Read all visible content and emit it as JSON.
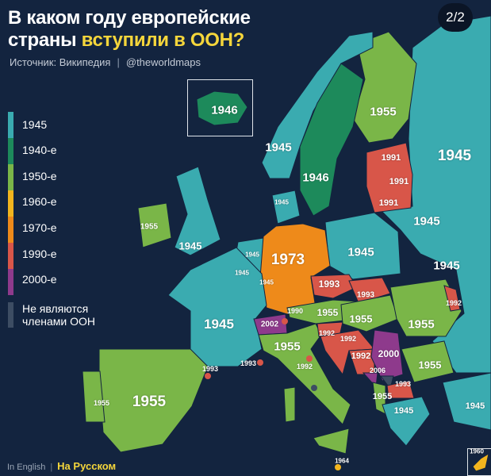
{
  "title": {
    "line1": "В каком году европейские",
    "line2_plain": "страны ",
    "line2_highlight": "вступили в ООН?"
  },
  "source": {
    "text": "Источник: Википедия",
    "handle": "@theworldmaps"
  },
  "pager": "2/2",
  "legend": {
    "items": [
      {
        "label": "1945",
        "color": "#3aabb0"
      },
      {
        "label": "1940-е",
        "color": "#1d8a5b"
      },
      {
        "label": "1950-е",
        "color": "#7ab648"
      },
      {
        "label": "1960-е",
        "color": "#f2b51e"
      },
      {
        "label": "1970-е",
        "color": "#ee8a1a"
      },
      {
        "label": "1990-е",
        "color": "#d85649"
      },
      {
        "label": "2000-е",
        "color": "#8e3a8c"
      }
    ],
    "non_member": {
      "label": "Не являются членами ООН",
      "color": "#3d4d63"
    }
  },
  "map": {
    "labels": {
      "iceland": "1946",
      "finland": "1955",
      "russia": "1945",
      "norway": "1945",
      "sweden": "1946",
      "estonia": "1991",
      "latvia": "1991",
      "lithuania": "1991",
      "belarus": "1945",
      "ireland": "1955",
      "uk": "1945",
      "denmark": "1945",
      "netherlands": "1945",
      "belgium": "1945",
      "luxembourg": "1945",
      "germany": "1973",
      "poland": "1945",
      "ukraine": "1945",
      "czechia": "1993",
      "slovakia": "1993",
      "moldova": "1992",
      "liechtenstein": "1990",
      "austria": "1955",
      "hungary": "1955",
      "romania": "1955",
      "france": "1945",
      "switzerland": "2002",
      "italy": "1955",
      "slovenia": "1992",
      "croatia": "1992",
      "bosnia": "1992",
      "serbia": "2000",
      "bulgaria": "1955",
      "montenegro": "2006",
      "macedonia": "1993",
      "monaco": "1993",
      "andorra": "1993",
      "san_marino": "1992",
      "spain": "1955",
      "portugal": "1955",
      "albania": "1955",
      "greece": "1945",
      "turkey": "1945",
      "malta": "1964",
      "cyprus": "1960"
    }
  },
  "footer": {
    "english": "In English",
    "russian": "На Русском"
  }
}
